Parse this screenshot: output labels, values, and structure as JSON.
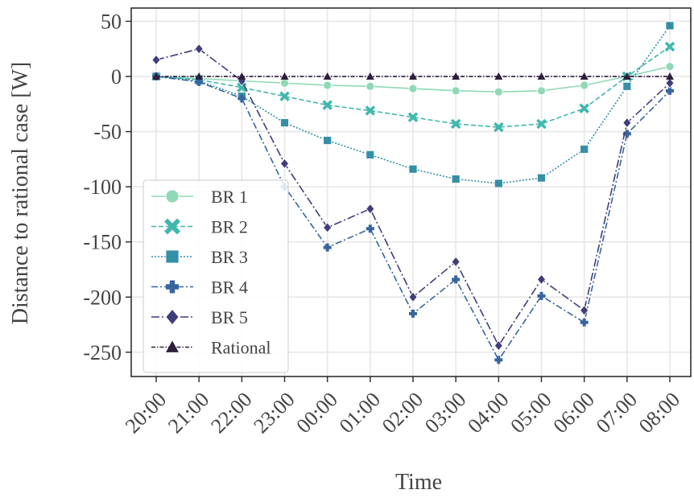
{
  "chart_data": {
    "type": "line",
    "x_label": "Time",
    "y_label": "Distance to rational case [W]",
    "categories": [
      "20:00",
      "21:00",
      "22:00",
      "23:00",
      "00:00",
      "01:00",
      "02:00",
      "03:00",
      "04:00",
      "05:00",
      "06:00",
      "07:00",
      "08:00"
    ],
    "series": [
      {
        "name": "BR 1",
        "color": "#8fd9b6",
        "values": [
          0,
          -2,
          -4,
          -6,
          -8,
          -9,
          -11,
          -13,
          -14,
          -13,
          -8,
          0,
          9
        ]
      },
      {
        "name": "BR 2",
        "color": "#40b7ad",
        "values": [
          0,
          -3,
          -10,
          -18,
          -26,
          -31,
          -37,
          -43,
          -46,
          -43,
          -29,
          0,
          27
        ]
      },
      {
        "name": "BR 3",
        "color": "#348fa7",
        "values": [
          0,
          -4,
          -18,
          -42,
          -58,
          -71,
          -84,
          -93,
          -97,
          -92,
          -66,
          -9,
          46
        ]
      },
      {
        "name": "BR 4",
        "color": "#37659e",
        "values": [
          0,
          -5,
          -20,
          -100,
          -155,
          -138,
          -215,
          -184,
          -257,
          -199,
          -223,
          -52,
          -13
        ]
      },
      {
        "name": "BR 5",
        "color": "#413d7b",
        "values": [
          15,
          25,
          -4,
          -79,
          -137,
          -120,
          -200,
          -168,
          -244,
          -184,
          -212,
          -42,
          -6
        ]
      },
      {
        "name": "Rational",
        "color": "#2e1e3b",
        "values": [
          0,
          0,
          0,
          0,
          0,
          0,
          0,
          0,
          0,
          0,
          0,
          0,
          0
        ]
      }
    ],
    "ylim": [
      -272,
      62
    ],
    "yticks": [
      50,
      0,
      -50,
      -100,
      -150,
      -200,
      -250
    ],
    "grid": true,
    "legend": "lower left"
  }
}
